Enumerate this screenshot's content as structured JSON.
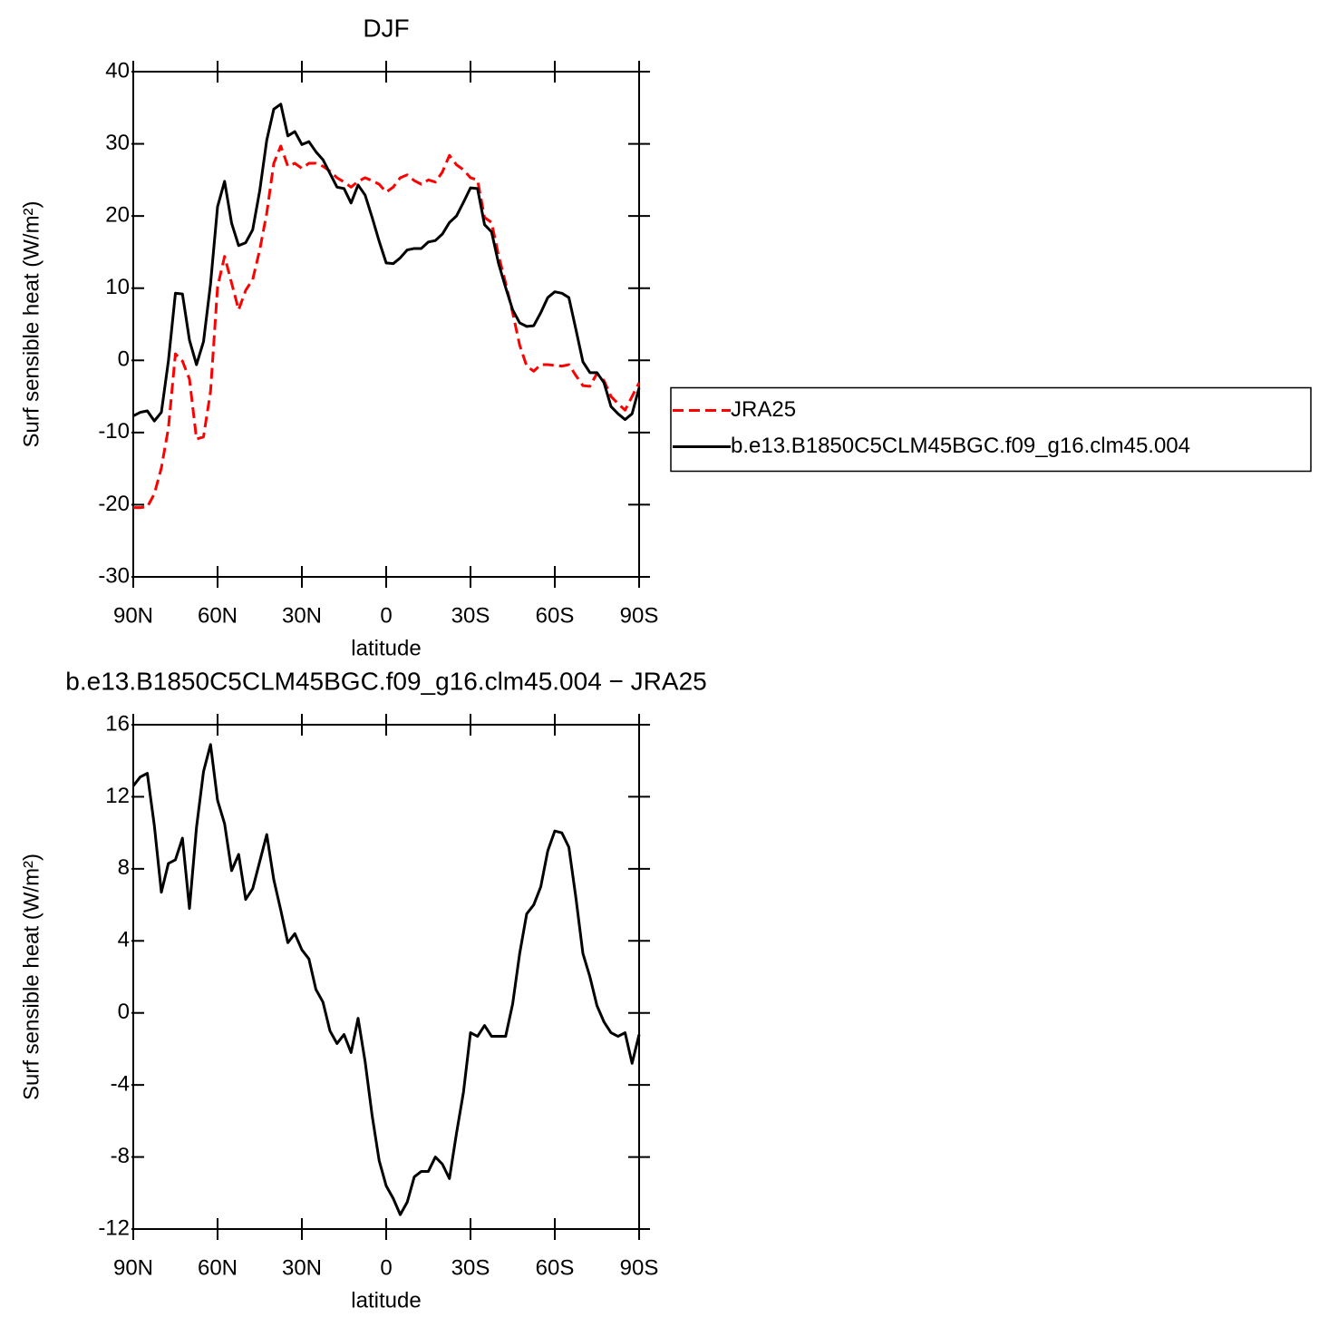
{
  "chart_data": [
    {
      "type": "line",
      "title": "DJF",
      "xlabel": "latitude",
      "ylabel": "Surf sensible heat (W/m²)",
      "x": [
        90,
        87.5,
        85,
        82.5,
        80,
        77.5,
        75,
        72.5,
        70,
        67.5,
        65,
        62.5,
        60,
        57.5,
        55,
        52.5,
        50,
        47.5,
        45,
        42.5,
        40,
        37.5,
        35,
        32.5,
        30,
        27.5,
        25,
        22.5,
        20,
        17.5,
        15,
        12.5,
        10,
        7.5,
        5,
        2.5,
        0,
        -2.5,
        -5,
        -7.5,
        -10,
        -12.5,
        -15,
        -17.5,
        -20,
        -22.5,
        -25,
        -27.5,
        -30,
        -32.5,
        -35,
        -37.5,
        -40,
        -42.5,
        -45,
        -47.5,
        -50,
        -52.5,
        -55,
        -57.5,
        -60,
        -62.5,
        -65,
        -67.5,
        -70,
        -72.5,
        -75,
        -77.5,
        -80,
        -82.5,
        -85,
        -87.5,
        -90
      ],
      "series": [
        {
          "name": "JRA25",
          "color": "#ff0000",
          "linestyle": "dashed",
          "values": [
            -20.4,
            -20.4,
            -20.3,
            -18.5,
            -14.9,
            -9.4,
            0.9,
            -0.1,
            -2.6,
            -10.9,
            -10.6,
            -4.3,
            10.2,
            14.4,
            10.7,
            7.0,
            9.7,
            11.2,
            15.3,
            20.4,
            27.3,
            29.7,
            26.9,
            27.3,
            26.6,
            27.3,
            27.3,
            26.9,
            26.2,
            25.3,
            24.7,
            24.0,
            24.8,
            25.3,
            24.9,
            24.4,
            23.3,
            24.0,
            25.3,
            25.7,
            24.9,
            24.4,
            25.0,
            24.7,
            26.1,
            28.4,
            27.1,
            26.4,
            25.3,
            25.0,
            19.8,
            19.1,
            14.5,
            10.7,
            6.6,
            2.1,
            -0.8,
            -1.5,
            -0.6,
            -0.6,
            -0.7,
            -0.8,
            -0.6,
            -2.1,
            -3.5,
            -3.6,
            -1.8,
            -2.8,
            -5.0,
            -6.0,
            -6.9,
            -5.0,
            -3.1
          ]
        },
        {
          "name": "b.e13.B1850C5CLM45BGC.f09_g16.clm45.004",
          "color": "#000000",
          "linestyle": "solid",
          "values": [
            -7.7,
            -7.2,
            -7.0,
            -8.4,
            -7.2,
            -0.1,
            9.3,
            9.2,
            2.8,
            -0.6,
            2.6,
            10.6,
            21.3,
            24.8,
            19.0,
            15.9,
            16.3,
            18.1,
            23.5,
            30.5,
            34.8,
            35.5,
            31.1,
            31.7,
            29.9,
            30.3,
            28.9,
            27.8,
            25.9,
            24.0,
            23.8,
            21.8,
            24.3,
            22.9,
            19.8,
            16.5,
            13.5,
            13.4,
            14.2,
            15.3,
            15.5,
            15.5,
            16.4,
            16.6,
            17.5,
            19.1,
            20.0,
            21.9,
            23.9,
            23.8,
            18.8,
            17.8,
            13.4,
            10.1,
            7.0,
            5.2,
            4.7,
            4.8,
            6.6,
            8.7,
            9.5,
            9.3,
            8.7,
            4.3,
            -0.2,
            -1.7,
            -1.7,
            -3.1,
            -6.4,
            -7.4,
            -8.2,
            -7.4,
            -3.8
          ]
        }
      ],
      "xlim": [
        90,
        -90
      ],
      "xticks": [
        {
          "value": 90,
          "label": "90N"
        },
        {
          "value": 60,
          "label": "60N"
        },
        {
          "value": 30,
          "label": "30N"
        },
        0,
        {
          "value": -30,
          "label": "30S"
        },
        {
          "value": -60,
          "label": "60S"
        },
        {
          "value": -90,
          "label": "90S"
        }
      ],
      "ylim": [
        -30,
        40
      ],
      "yticks": [
        -30,
        -20,
        -10,
        0,
        10,
        20,
        30,
        40
      ],
      "legend": "right"
    },
    {
      "type": "line",
      "title": "b.e13.B1850C5CLM45BGC.f09_g16.clm45.004 − JRA25",
      "xlabel": "latitude",
      "ylabel": "Surf sensible heat (W/m²)",
      "x": [
        90,
        87.5,
        85,
        82.5,
        80,
        77.5,
        75,
        72.5,
        70,
        67.5,
        65,
        62.5,
        60,
        57.5,
        55,
        52.5,
        50,
        47.5,
        45,
        42.5,
        40,
        37.5,
        35,
        32.5,
        30,
        27.5,
        25,
        22.5,
        20,
        17.5,
        15,
        12.5,
        10,
        7.5,
        5,
        2.5,
        0,
        -2.5,
        -5,
        -7.5,
        -10,
        -12.5,
        -15,
        -17.5,
        -20,
        -22.5,
        -25,
        -27.5,
        -30,
        -32.5,
        -35,
        -37.5,
        -40,
        -42.5,
        -45,
        -47.5,
        -50,
        -52.5,
        -55,
        -57.5,
        -60,
        -62.5,
        -65,
        -67.5,
        -70,
        -72.5,
        -75,
        -77.5,
        -80,
        -82.5,
        -85,
        -87.5,
        -90
      ],
      "series": [
        {
          "color": "#000000",
          "linestyle": "solid",
          "values": [
            12.6,
            13.1,
            13.3,
            10.4,
            6.7,
            8.3,
            8.5,
            9.7,
            5.8,
            10.3,
            13.4,
            14.9,
            11.8,
            10.5,
            7.9,
            8.8,
            6.3,
            6.9,
            8.4,
            9.9,
            7.4,
            5.7,
            3.9,
            4.4,
            3.5,
            3.0,
            1.3,
            0.6,
            -1.0,
            -1.7,
            -1.2,
            -2.2,
            -0.3,
            -2.7,
            -5.7,
            -8.2,
            -9.6,
            -10.3,
            -11.2,
            -10.5,
            -9.1,
            -8.8,
            -8.8,
            -8.0,
            -8.4,
            -9.2,
            -6.7,
            -4.4,
            -1.1,
            -1.3,
            -0.7,
            -1.3,
            -1.3,
            -1.3,
            0.5,
            3.3,
            5.5,
            6.0,
            7.0,
            9.0,
            10.1,
            10.0,
            9.2,
            6.4,
            3.3,
            2.0,
            0.4,
            -0.5,
            -1.1,
            -1.3,
            -1.1,
            -2.8,
            -1.2
          ]
        }
      ],
      "xlim": [
        90,
        -90
      ],
      "xticks": [
        {
          "value": 90,
          "label": "90N"
        },
        {
          "value": 60,
          "label": "60N"
        },
        {
          "value": 30,
          "label": "30N"
        },
        0,
        {
          "value": -30,
          "label": "30S"
        },
        {
          "value": -60,
          "label": "60S"
        },
        {
          "value": -90,
          "label": "90S"
        }
      ],
      "ylim": [
        -12,
        16
      ],
      "yticks": [
        -12,
        -8,
        -4,
        0,
        4,
        8,
        12,
        16
      ]
    }
  ]
}
